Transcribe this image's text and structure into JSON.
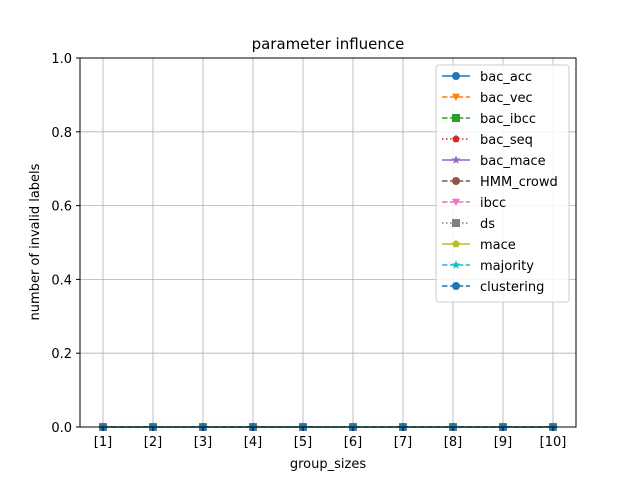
{
  "chart_data": {
    "type": "line",
    "title": "parameter influence",
    "xlabel": "group_sizes",
    "ylabel": "number of invalid labels",
    "categories": [
      "[1]",
      "[2]",
      "[3]",
      "[4]",
      "[5]",
      "[6]",
      "[7]",
      "[8]",
      "[9]",
      "[10]"
    ],
    "ylim": [
      0,
      1.0
    ],
    "yticks": [
      "0.0",
      "0.2",
      "0.4",
      "0.6",
      "0.8",
      "1.0"
    ],
    "grid": true,
    "legend_position": "top-right",
    "series": [
      {
        "name": "bac_acc",
        "color": "#1f77b4",
        "marker": "circle",
        "dash": "solid",
        "values": [
          0,
          0,
          0,
          0,
          0,
          0,
          0,
          0,
          0,
          0
        ]
      },
      {
        "name": "bac_vec",
        "color": "#ff7f0e",
        "marker": "triangle-down",
        "dash": "dashed",
        "values": [
          0,
          0,
          0,
          0,
          0,
          0,
          0,
          0,
          0,
          0
        ]
      },
      {
        "name": "bac_ibcc",
        "color": "#2ca02c",
        "marker": "square",
        "dash": "dashed",
        "values": [
          0,
          0,
          0,
          0,
          0,
          0,
          0,
          0,
          0,
          0
        ]
      },
      {
        "name": "bac_seq",
        "color": "#d62728",
        "marker": "pentagon",
        "dash": "dotted",
        "values": [
          0,
          0,
          0,
          0,
          0,
          0,
          0,
          0,
          0,
          0
        ]
      },
      {
        "name": "bac_mace",
        "color": "#9467bd",
        "marker": "star",
        "dash": "solid",
        "values": [
          0,
          0,
          0,
          0,
          0,
          0,
          0,
          0,
          0,
          0
        ]
      },
      {
        "name": "HMM_crowd",
        "color": "#8c564b",
        "marker": "circle",
        "dash": "dashed",
        "values": [
          0,
          0,
          0,
          0,
          0,
          0,
          0,
          0,
          0,
          0
        ]
      },
      {
        "name": "ibcc",
        "color": "#e377c2",
        "marker": "triangle-down",
        "dash": "dashed",
        "values": [
          0,
          0,
          0,
          0,
          0,
          0,
          0,
          0,
          0,
          0
        ]
      },
      {
        "name": "ds",
        "color": "#7f7f7f",
        "marker": "square",
        "dash": "dotted",
        "values": [
          0,
          0,
          0,
          0,
          0,
          0,
          0,
          0,
          0,
          0
        ]
      },
      {
        "name": "mace",
        "color": "#bcbd22",
        "marker": "pentagon",
        "dash": "solid",
        "values": [
          0,
          0,
          0,
          0,
          0,
          0,
          0,
          0,
          0,
          0
        ]
      },
      {
        "name": "majority",
        "color": "#17becf",
        "marker": "star",
        "dash": "dashed",
        "values": [
          0,
          0,
          0,
          0,
          0,
          0,
          0,
          0,
          0,
          0
        ]
      },
      {
        "name": "clustering",
        "color": "#1f77b4",
        "marker": "circle",
        "dash": "dashed",
        "values": [
          0,
          0,
          0,
          0,
          0,
          0,
          0,
          0,
          0,
          0
        ]
      }
    ]
  }
}
